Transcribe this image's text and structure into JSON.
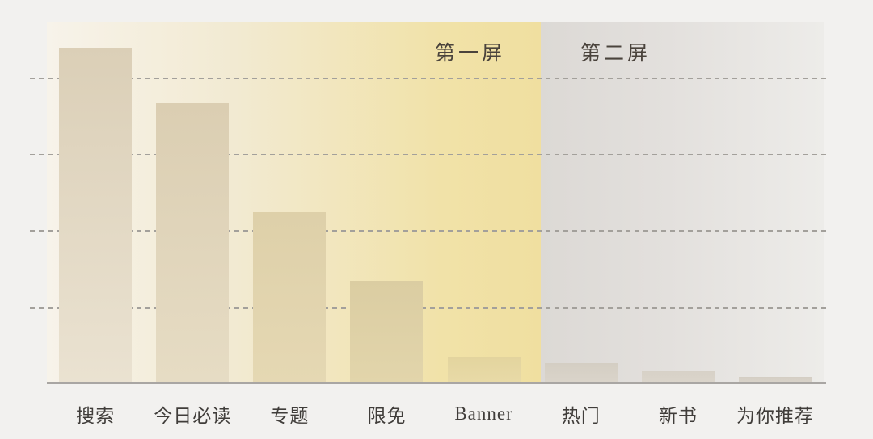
{
  "page": {
    "background": "#f2f1ef"
  },
  "regions": [
    {
      "label": "第一屏",
      "stops": [
        "#f7f3ea 0%",
        "#f2ead2 38%",
        "#f1e2a8 80%",
        "#f0dfa0 100%"
      ],
      "width_pct": 63.6
    },
    {
      "label": "第二屏",
      "stops": [
        "#dcd9d5 0%",
        "#e3e0dd 45%",
        "#edece9 100%"
      ],
      "width_pct": 36.4
    }
  ],
  "chart_data": {
    "type": "bar",
    "title": "",
    "xlabel": "",
    "ylabel": "",
    "categories": [
      "搜索",
      "今日必读",
      "专题",
      "限免",
      "Banner",
      "热门",
      "新书",
      "为你推荐"
    ],
    "values": [
      4.4,
      3.67,
      2.24,
      1.34,
      0.34,
      0.26,
      0.15,
      0.07
    ],
    "value_unit": "relative (1 = one dashed gridline interval; no numeric tick labels shown)",
    "ylim": [
      0,
      4.75
    ],
    "gridlines": [
      1,
      2,
      3,
      4
    ],
    "grid_style": "dashed horizontal",
    "legend": [],
    "annotations": [
      {
        "text": "第一屏",
        "region": "yellow background, first 5 bars"
      },
      {
        "text": "第二屏",
        "region": "gray background, last 3 bars"
      }
    ],
    "bar_colors": [
      {
        "top": "#dbcfb7",
        "bottom": "#eae2d1"
      },
      {
        "top": "#dbceb2",
        "bottom": "#e6dcc4"
      },
      {
        "top": "#ded0a9",
        "bottom": "#e5d8b3"
      },
      {
        "top": "#dbcda2",
        "bottom": "#e2d5ab"
      },
      {
        "top": "#e3d49e",
        "bottom": "#e8daa7"
      },
      {
        "top": "#d4cec3",
        "bottom": "#dad4ca"
      },
      {
        "top": "#d7d1c7",
        "bottom": "#dbd5cb"
      },
      {
        "top": "#d4cec4",
        "bottom": "#d9d3c9"
      }
    ],
    "grid_color": "#a3a09b",
    "axis_color": "#a9a6a3",
    "label_color": "#403d3a",
    "region_label_color": "#4a433c"
  }
}
